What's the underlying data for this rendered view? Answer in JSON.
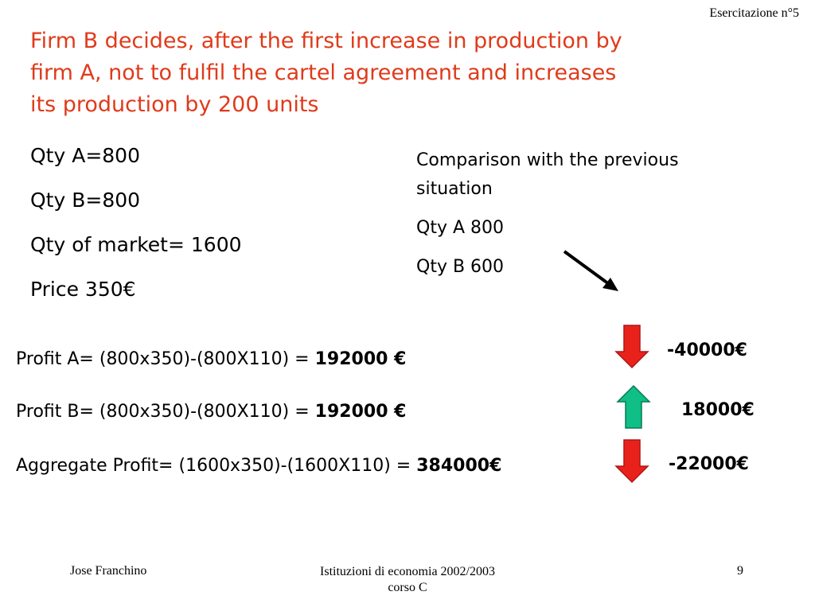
{
  "header": {
    "note": "Esercitazione n°5"
  },
  "title": {
    "lines": [
      "Firm B decides, after the first increase in production by",
      "firm A, not to fulfil the cartel agreement and increases",
      "its production by 200 units"
    ]
  },
  "quantities": [
    "Qty A=800",
    "Qty B=800",
    "Qty of market= 1600",
    "Price 350€"
  ],
  "comparison": {
    "heading_lines": [
      "Comparison with the previous",
      "situation"
    ],
    "qty_a": "Qty A 800",
    "qty_b": "Qty B  600"
  },
  "profits": [
    {
      "formula": "Profit A= (800x350)-(800X110) = ",
      "result": "192000 €",
      "change": "-40000€",
      "direction": "down",
      "arrow_color": "#e8221b"
    },
    {
      "formula": "Profit B= (800x350)-(800X110) = ",
      "result": "192000 €",
      "change": "18000€",
      "direction": "up",
      "arrow_color": "#0fbf86"
    },
    {
      "formula": "Aggregate Profit= (1600x350)-(1600X110) = ",
      "result": "384000€",
      "change": "-22000€",
      "direction": "down",
      "arrow_color": "#e8221b"
    }
  ],
  "footer": {
    "author": "Jose Franchino",
    "course_lines": [
      "Istituzioni di economia 2002/2003",
      "corso C"
    ],
    "page_number": "9"
  },
  "colors": {
    "title": "#e03a1a",
    "down_arrow": "#e8221b",
    "up_arrow": "#0fbf86"
  }
}
